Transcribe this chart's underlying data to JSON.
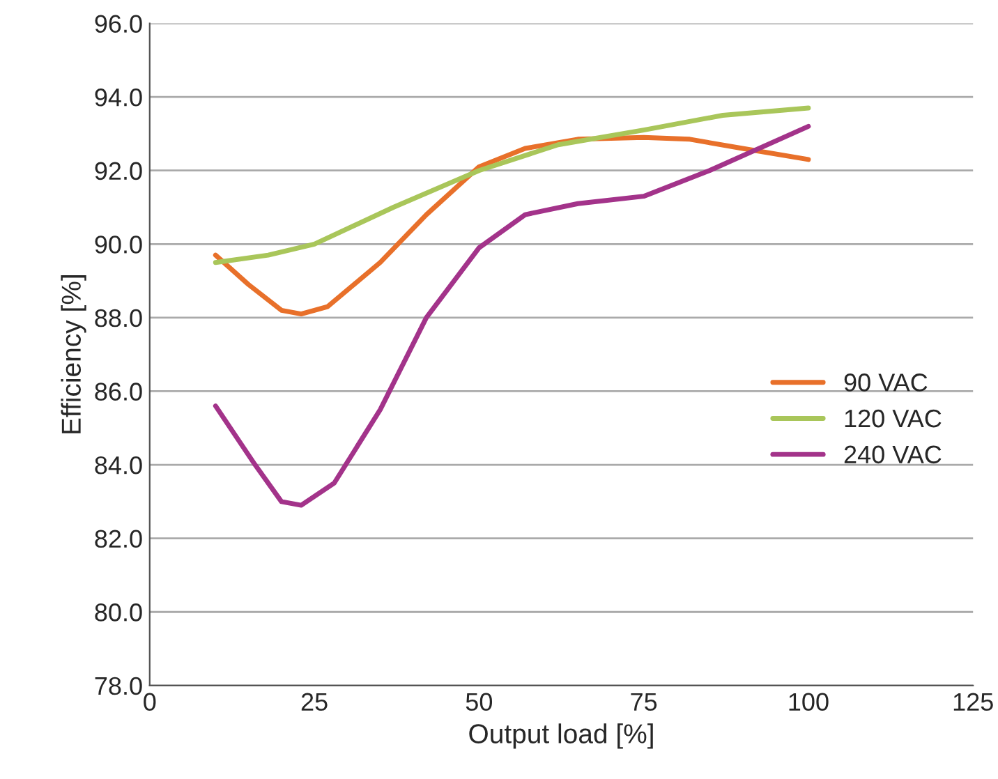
{
  "chart_data": {
    "type": "line",
    "xlabel": "Output load [%]",
    "ylabel": "Efficiency [%]",
    "xlim": [
      0,
      125
    ],
    "xticks": [
      0,
      25,
      50,
      75,
      100,
      125
    ],
    "ylim": [
      78,
      96
    ],
    "yticks": [
      {
        "value": 78,
        "label": "78.0"
      },
      {
        "value": 80,
        "label": "80.0"
      },
      {
        "value": 82,
        "label": "82.0"
      },
      {
        "value": 84,
        "label": "84.0"
      },
      {
        "value": 86,
        "label": "86.0"
      },
      {
        "value": 88,
        "label": "88.0"
      },
      {
        "value": 90,
        "label": "90.0"
      },
      {
        "value": 92,
        "label": "92.0"
      },
      {
        "value": 94,
        "label": "94.0"
      },
      {
        "value": 96,
        "label": "96.0"
      }
    ],
    "grid": "y",
    "legend": "right",
    "marker": "none",
    "line_style": "solid",
    "series": [
      {
        "name": "90 VAC",
        "color": "#e8702a",
        "x": [
          10,
          15,
          20,
          23,
          27,
          35,
          42,
          50,
          57,
          65,
          75,
          82,
          90,
          100
        ],
        "values": [
          89.7,
          88.9,
          88.2,
          88.1,
          88.3,
          89.5,
          90.8,
          92.1,
          92.6,
          92.85,
          92.9,
          92.85,
          92.6,
          92.3
        ]
      },
      {
        "name": "120 VAC",
        "color": "#a9c65a",
        "x": [
          10,
          18,
          25,
          37,
          50,
          62,
          75,
          87,
          100
        ],
        "values": [
          89.5,
          89.7,
          90.0,
          91.0,
          92.0,
          92.7,
          93.1,
          93.5,
          93.7
        ]
      },
      {
        "name": "240 VAC",
        "color": "#a3338a",
        "x": [
          10,
          16,
          20,
          23,
          28,
          35,
          42,
          50,
          57,
          65,
          75,
          85,
          100
        ],
        "values": [
          85.6,
          84.0,
          83.0,
          82.9,
          83.5,
          85.5,
          88.0,
          89.9,
          90.8,
          91.1,
          91.3,
          92.0,
          93.2
        ]
      }
    ]
  }
}
